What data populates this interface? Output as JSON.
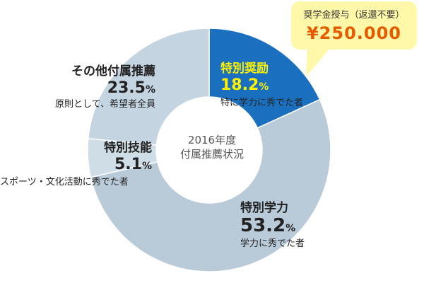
{
  "chart_data": {
    "type": "pie",
    "style": "donut",
    "center_label_line1": "2016年度",
    "center_label_line2": "付属推薦状況",
    "unit": "%",
    "slices": [
      {
        "name": "特別奨励",
        "value": 18.2,
        "value_text": "18.2",
        "note": "特に学力に秀でた者",
        "color": "#1a6fbf"
      },
      {
        "name": "特別学力",
        "value": 53.2,
        "value_text": "53.2",
        "note": "学力に秀でた者",
        "color": "#b9cbd9"
      },
      {
        "name": "特別技能",
        "value": 5.1,
        "value_text": "5.1",
        "note": "スポーツ・文化活動に秀でた者",
        "color": "#cfdde7"
      },
      {
        "name": "その他付属推薦",
        "value": 23.5,
        "value_text": "23.5",
        "note": "原則として、希望者全員",
        "color": "#c4d5e1"
      }
    ]
  },
  "callout": {
    "title": "奨学金授与（返還不要）",
    "amount": "¥250.000"
  }
}
